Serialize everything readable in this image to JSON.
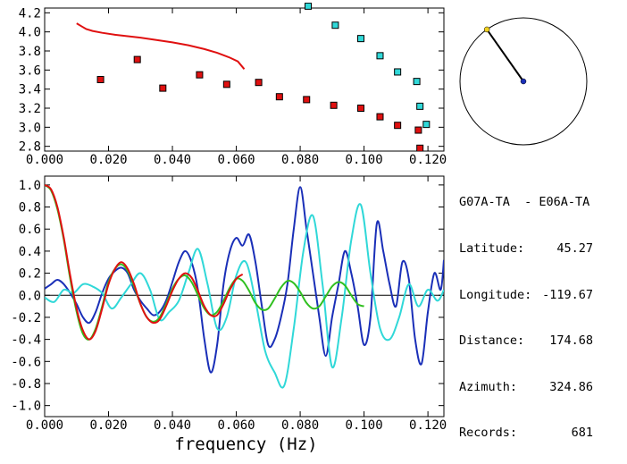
{
  "chart_data": [
    {
      "type": "scatter",
      "xlim": [
        0.0,
        0.125
      ],
      "ylim": [
        2.75,
        4.25
      ],
      "x_ticks": [
        "0.000",
        "0.020",
        "0.040",
        "0.060",
        "0.080",
        "0.100",
        "0.120"
      ],
      "y_ticks": [
        "2.8",
        "3.0",
        "3.2",
        "3.4",
        "3.6",
        "3.8",
        "4.0",
        "4.2"
      ],
      "grid": false,
      "colors": {
        "red_points": "#e01010",
        "cyan_points": "#30d8d8",
        "curve": "#e01010"
      },
      "series": [
        {
          "kind": "points",
          "color": "red",
          "points": [
            [
              0.0175,
              3.5
            ],
            [
              0.029,
              3.71
            ],
            [
              0.037,
              3.41
            ],
            [
              0.0485,
              3.55
            ],
            [
              0.057,
              3.45
            ],
            [
              0.067,
              3.47
            ],
            [
              0.0735,
              3.32
            ],
            [
              0.082,
              3.29
            ],
            [
              0.0905,
              3.23
            ],
            [
              0.099,
              3.2
            ],
            [
              0.105,
              3.11
            ],
            [
              0.1105,
              3.02
            ],
            [
              0.117,
              2.97
            ],
            [
              0.1175,
              2.78
            ]
          ]
        },
        {
          "kind": "points",
          "color": "cyan",
          "points": [
            [
              0.0825,
              4.27
            ],
            [
              0.091,
              4.07
            ],
            [
              0.099,
              3.93
            ],
            [
              0.105,
              3.75
            ],
            [
              0.1105,
              3.58
            ],
            [
              0.1165,
              3.48
            ],
            [
              0.1175,
              3.22
            ],
            [
              0.1195,
              3.03
            ]
          ]
        },
        {
          "kind": "line",
          "color": "red",
          "points": [
            [
              0.01,
              4.09
            ],
            [
              0.0115,
              4.06
            ],
            [
              0.013,
              4.03
            ],
            [
              0.015,
              4.01
            ],
            [
              0.018,
              3.99
            ],
            [
              0.022,
              3.97
            ],
            [
              0.026,
              3.955
            ],
            [
              0.03,
              3.94
            ],
            [
              0.035,
              3.915
            ],
            [
              0.04,
              3.89
            ],
            [
              0.045,
              3.86
            ],
            [
              0.05,
              3.82
            ],
            [
              0.054,
              3.78
            ],
            [
              0.058,
              3.73
            ],
            [
              0.0605,
              3.69
            ],
            [
              0.0625,
              3.61
            ]
          ]
        }
      ]
    },
    {
      "type": "line",
      "xlabel": "frequency (Hz)",
      "xlim": [
        0.0,
        0.125
      ],
      "ylim": [
        -1.1,
        1.08
      ],
      "x_ticks": [
        "0.000",
        "0.020",
        "0.040",
        "0.060",
        "0.080",
        "0.100",
        "0.120"
      ],
      "y_ticks": [
        "1.0",
        "0.8",
        "0.6",
        "0.4",
        "0.2",
        "0.0",
        "-0.2",
        "-0.4",
        "-0.6",
        "-0.8",
        "-1.0"
      ],
      "zero_line": true,
      "grid": false,
      "series": [
        {
          "color": "#1a2fb8",
          "x": [
            0.0,
            0.002,
            0.004,
            0.006,
            0.008,
            0.01,
            0.012,
            0.014,
            0.016,
            0.018,
            0.02,
            0.022,
            0.024,
            0.026,
            0.028,
            0.03,
            0.032,
            0.034,
            0.036,
            0.038,
            0.04,
            0.042,
            0.044,
            0.046,
            0.048,
            0.05,
            0.052,
            0.054,
            0.056,
            0.058,
            0.06,
            0.062,
            0.064,
            0.066,
            0.068,
            0.07,
            0.072,
            0.074,
            0.076,
            0.078,
            0.08,
            0.082,
            0.084,
            0.086,
            0.088,
            0.09,
            0.092,
            0.094,
            0.096,
            0.098,
            0.1,
            0.102,
            0.104,
            0.106,
            0.108,
            0.11,
            0.112,
            0.114,
            0.116,
            0.118,
            0.12,
            0.122,
            0.124,
            0.125
          ],
          "y": [
            0.06,
            0.1,
            0.14,
            0.1,
            0.02,
            -0.08,
            -0.2,
            -0.25,
            -0.15,
            0.02,
            0.15,
            0.22,
            0.25,
            0.2,
            0.05,
            -0.05,
            -0.12,
            -0.18,
            -0.15,
            -0.05,
            0.12,
            0.3,
            0.4,
            0.3,
            0.05,
            -0.4,
            -0.7,
            -0.45,
            0.1,
            0.4,
            0.52,
            0.45,
            0.55,
            0.3,
            -0.1,
            -0.45,
            -0.4,
            -0.2,
            0.1,
            0.6,
            0.98,
            0.6,
            0.2,
            -0.2,
            -0.55,
            -0.2,
            0.1,
            0.4,
            0.2,
            -0.1,
            -0.45,
            -0.2,
            0.65,
            0.4,
            0.1,
            -0.1,
            0.3,
            0.15,
            -0.4,
            -0.62,
            -0.15,
            0.2,
            0.05,
            0.32
          ]
        },
        {
          "color": "#30d8d8",
          "x": [
            0.0,
            0.003,
            0.006,
            0.009,
            0.012,
            0.015,
            0.018,
            0.021,
            0.024,
            0.027,
            0.03,
            0.033,
            0.036,
            0.039,
            0.042,
            0.045,
            0.048,
            0.051,
            0.054,
            0.057,
            0.06,
            0.063,
            0.066,
            0.069,
            0.072,
            0.075,
            0.078,
            0.081,
            0.084,
            0.087,
            0.09,
            0.093,
            0.096,
            0.099,
            0.102,
            0.105,
            0.108,
            0.111,
            0.114,
            0.117,
            0.12,
            0.123,
            0.125
          ],
          "y": [
            -0.02,
            -0.06,
            0.05,
            0.02,
            0.1,
            0.08,
            0.02,
            -0.12,
            -0.02,
            0.1,
            0.2,
            0.05,
            -0.22,
            -0.15,
            -0.05,
            0.2,
            0.42,
            0.1,
            -0.3,
            -0.2,
            0.18,
            0.3,
            -0.05,
            -0.5,
            -0.7,
            -0.82,
            -0.3,
            0.4,
            0.72,
            0.1,
            -0.65,
            -0.2,
            0.5,
            0.82,
            0.2,
            -0.3,
            -0.4,
            -0.2,
            0.1,
            -0.1,
            0.05,
            -0.05,
            0.05
          ]
        },
        {
          "color": "#30c020",
          "x": [
            0.0,
            0.002,
            0.004,
            0.006,
            0.008,
            0.01,
            0.012,
            0.014,
            0.016,
            0.018,
            0.02,
            0.022,
            0.024,
            0.026,
            0.028,
            0.03,
            0.032,
            0.034,
            0.036,
            0.038,
            0.04,
            0.042,
            0.044,
            0.046,
            0.048,
            0.05,
            0.052,
            0.054,
            0.056,
            0.058,
            0.06,
            0.062,
            0.064,
            0.066,
            0.068,
            0.07,
            0.072,
            0.074,
            0.076,
            0.078,
            0.08,
            0.082,
            0.084,
            0.086,
            0.088,
            0.09,
            0.092,
            0.094,
            0.096,
            0.098,
            0.1
          ],
          "y": [
            1.0,
            0.95,
            0.78,
            0.5,
            0.15,
            -0.15,
            -0.35,
            -0.4,
            -0.3,
            -0.1,
            0.12,
            0.24,
            0.28,
            0.22,
            0.08,
            -0.08,
            -0.2,
            -0.24,
            -0.2,
            -0.08,
            0.06,
            0.15,
            0.18,
            0.12,
            0.0,
            -0.12,
            -0.18,
            -0.15,
            -0.05,
            0.07,
            0.15,
            0.13,
            0.04,
            -0.07,
            -0.13,
            -0.12,
            -0.03,
            0.07,
            0.13,
            0.11,
            0.03,
            -0.07,
            -0.12,
            -0.1,
            -0.01,
            0.08,
            0.12,
            0.09,
            0.0,
            -0.08,
            -0.1
          ]
        },
        {
          "color": "#e01010",
          "x": [
            0.0,
            0.002,
            0.004,
            0.006,
            0.008,
            0.01,
            0.012,
            0.014,
            0.016,
            0.018,
            0.02,
            0.022,
            0.024,
            0.026,
            0.028,
            0.03,
            0.032,
            0.034,
            0.036,
            0.038,
            0.04,
            0.042,
            0.044,
            0.046,
            0.048,
            0.05,
            0.052,
            0.054,
            0.056,
            0.058,
            0.06,
            0.062
          ],
          "y": [
            1.0,
            0.96,
            0.8,
            0.52,
            0.18,
            -0.12,
            -0.32,
            -0.4,
            -0.32,
            -0.12,
            0.1,
            0.24,
            0.3,
            0.24,
            0.1,
            -0.08,
            -0.2,
            -0.25,
            -0.22,
            -0.1,
            0.04,
            0.15,
            0.2,
            0.16,
            0.04,
            -0.1,
            -0.18,
            -0.18,
            -0.08,
            0.05,
            0.15,
            0.19
          ]
        }
      ]
    }
  ],
  "info": {
    "station_pair": "G07A-TA  - E06A-TA",
    "rows": [
      {
        "label": "Latitude:",
        "value": "45.27"
      },
      {
        "label": "Longitude:",
        "value": "-119.67"
      },
      {
        "label": "Distance:",
        "value": "174.68"
      },
      {
        "label": "Azimuth:",
        "value": "324.86"
      },
      {
        "label": "Records:",
        "value": "681"
      }
    ],
    "azimuth_deg": 324.86
  }
}
